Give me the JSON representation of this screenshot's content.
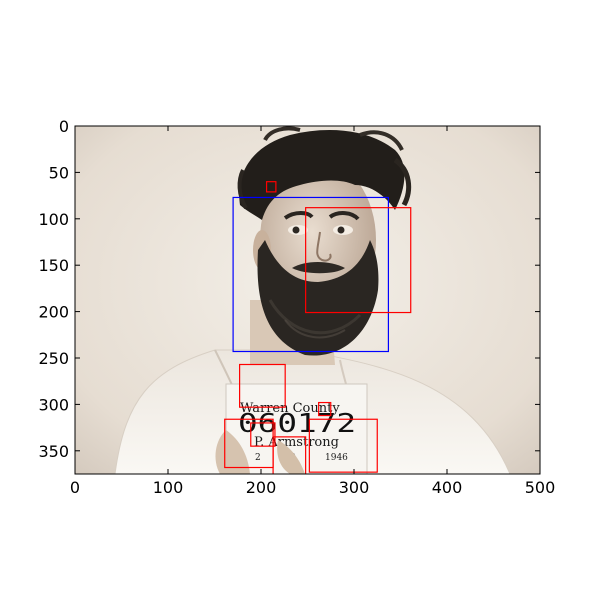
{
  "axes": {
    "x": {
      "range": [
        0,
        500
      ],
      "ticks": [
        {
          "value": 0,
          "label": "0"
        },
        {
          "value": 100,
          "label": "100"
        },
        {
          "value": 200,
          "label": "200"
        },
        {
          "value": 300,
          "label": "300"
        },
        {
          "value": 400,
          "label": "400"
        },
        {
          "value": 500,
          "label": "500"
        }
      ]
    },
    "y": {
      "range": [
        0,
        375
      ],
      "inverted": true,
      "ticks": [
        {
          "value": 0,
          "label": "0"
        },
        {
          "value": 50,
          "label": "50"
        },
        {
          "value": 100,
          "label": "100"
        },
        {
          "value": 150,
          "label": "150"
        },
        {
          "value": 200,
          "label": "200"
        },
        {
          "value": 250,
          "label": "250"
        },
        {
          "value": 300,
          "label": "300"
        },
        {
          "value": 350,
          "label": "350"
        }
      ]
    }
  },
  "image": {
    "subject": "sepia mugshot of bearded man in white shirt holding booking placard",
    "placard": {
      "line1": "Warren County",
      "line2": "060172",
      "line3": "P. Armstrong",
      "line4a": "2",
      "line4b": "2",
      "line4c": "1946"
    }
  },
  "box_colors": {
    "face": "#0000ff",
    "object": "#ff0000"
  },
  "boxes": [
    {
      "kind": "face",
      "x0": 170,
      "y0": 77,
      "x1": 337,
      "y1": 243
    },
    {
      "kind": "object",
      "x0": 206,
      "y0": 60,
      "x1": 216,
      "y1": 71
    },
    {
      "kind": "object",
      "x0": 248,
      "y0": 88,
      "x1": 361,
      "y1": 201
    },
    {
      "kind": "object",
      "x0": 177,
      "y0": 257,
      "x1": 226,
      "y1": 303
    },
    {
      "kind": "object",
      "x0": 262,
      "y0": 298,
      "x1": 275,
      "y1": 312
    },
    {
      "kind": "object",
      "x0": 161,
      "y0": 316,
      "x1": 213,
      "y1": 368
    },
    {
      "kind": "object",
      "x0": 189,
      "y0": 320,
      "x1": 215,
      "y1": 345
    },
    {
      "kind": "object",
      "x0": 213,
      "y0": 335,
      "x1": 248,
      "y1": 376
    },
    {
      "kind": "object",
      "x0": 252,
      "y0": 316,
      "x1": 325,
      "y1": 373
    }
  ]
}
